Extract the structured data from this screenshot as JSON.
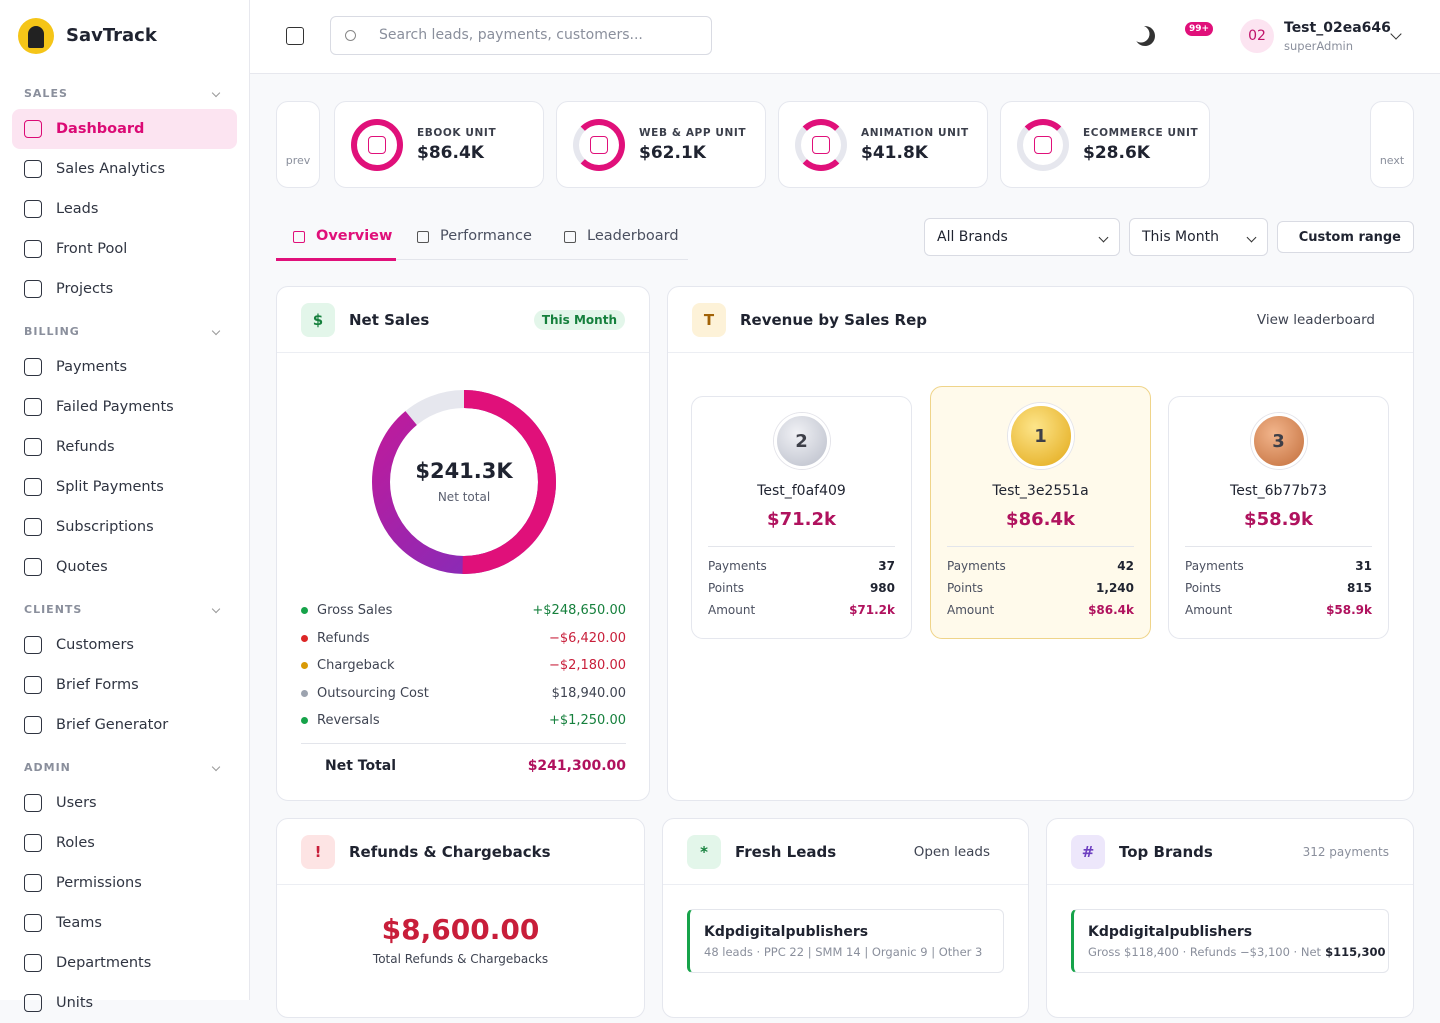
{
  "sidebar": {
    "brand": "SavTrack",
    "sections": [
      {
        "title": "SALES",
        "items": [
          "Dashboard",
          "Sales Analytics",
          "Leads",
          "Front Pool",
          "Projects"
        ]
      },
      {
        "title": "BILLING",
        "items": [
          "Payments",
          "Failed Payments",
          "Refunds",
          "Split Payments",
          "Subscriptions",
          "Quotes"
        ]
      },
      {
        "title": "CLIENTS",
        "items": [
          "Customers",
          "Brief Forms",
          "Brief Generator"
        ]
      },
      {
        "title": "ADMIN",
        "items": [
          "Users",
          "Roles",
          "Permissions",
          "Teams",
          "Departments",
          "Units"
        ]
      }
    ]
  },
  "header": {
    "search_placeholder": "Search leads, payments, customers...",
    "notifications": "99+",
    "user": {
      "initials": "02",
      "name": "Test_02ea646",
      "role": "superAdmin"
    }
  },
  "units": {
    "prev": "prev",
    "next": "next",
    "cards": [
      {
        "label": "EBOOK UNIT",
        "value": "$86.4K"
      },
      {
        "label": "WEB & APP UNIT",
        "value": "$62.1K"
      },
      {
        "label": "ANIMATION UNIT",
        "value": "$41.8K"
      },
      {
        "label": "ECOMMERCE UNIT",
        "value": "$28.6K"
      }
    ]
  },
  "tabs": [
    "Overview",
    "Performance",
    "Leaderboard"
  ],
  "filters": {
    "brand": "All Brands",
    "period": "This Month",
    "custom": "Custom range"
  },
  "net_sales": {
    "title": "Net Sales",
    "badge": "This Month",
    "total": "$241.3K",
    "total_label": "Net total",
    "rows": [
      {
        "label": "Gross Sales",
        "value": "+$248,650.00"
      },
      {
        "label": "Refunds",
        "value": "−$6,420.00"
      },
      {
        "label": "Chargeback",
        "value": "−$2,180.00"
      },
      {
        "label": "Outsourcing Cost",
        "value": "$18,940.00"
      },
      {
        "label": "Reversals",
        "value": "+$1,250.00"
      }
    ],
    "net_label": "Net Total",
    "net_value": "$241,300.00"
  },
  "revenue": {
    "title": "Revenue by Sales Rep",
    "link": "View leaderboard",
    "reps": [
      {
        "rank": "2",
        "name": "Test_f0af409",
        "revenue": "$71.2k",
        "stats": [
          [
            "Payments",
            "37"
          ],
          [
            "Points",
            "980"
          ],
          [
            "Amount",
            "$71.2k"
          ]
        ]
      },
      {
        "rank": "1",
        "name": "Test_3e2551a",
        "revenue": "$86.4k",
        "stats": [
          [
            "Payments",
            "42"
          ],
          [
            "Points",
            "1,240"
          ],
          [
            "Amount",
            "$86.4k"
          ]
        ]
      },
      {
        "rank": "3",
        "name": "Test_6b77b73",
        "revenue": "$58.9k",
        "stats": [
          [
            "Payments",
            "31"
          ],
          [
            "Points",
            "815"
          ],
          [
            "Amount",
            "$58.9k"
          ]
        ]
      }
    ]
  },
  "refunds": {
    "title": "Refunds & Chargebacks",
    "total": "$8,600.00",
    "total_label": "Total Refunds & Chargebacks"
  },
  "fresh_leads": {
    "title": "Fresh Leads",
    "link": "Open leads",
    "items": [
      {
        "name": "Kdpdigitalpublishers",
        "detail": "48 leads · PPC 22 | SMM 14 | Organic 9 | Other 3"
      }
    ]
  },
  "top_brands": {
    "title": "Top Brands",
    "count": "312 payments",
    "items": [
      {
        "name": "Kdpdigitalpublishers",
        "detail": "Gross $118,400 · Refunds −$3,100 · Net",
        "net": "$115,300"
      }
    ]
  }
}
